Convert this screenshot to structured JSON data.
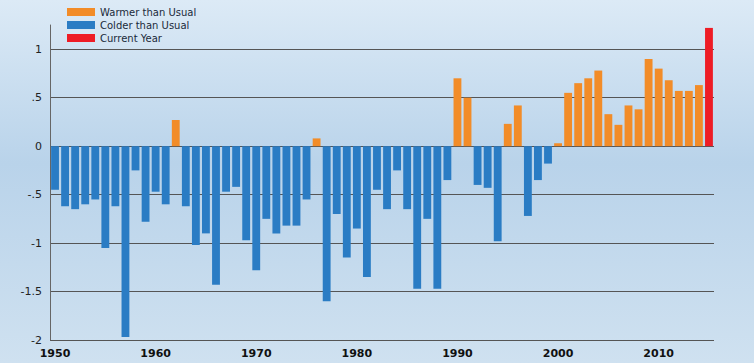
{
  "chart_data": {
    "type": "bar",
    "stacked": true,
    "grid": true,
    "legend": "top-left",
    "categories": [
      "1950",
      null,
      null,
      null,
      null,
      null,
      null,
      null,
      null,
      null,
      "1960",
      null,
      null,
      null,
      null,
      null,
      null,
      null,
      null,
      null,
      "1970",
      null,
      null,
      null,
      null,
      null,
      null,
      null,
      null,
      null,
      "1980",
      null,
      null,
      null,
      null,
      null,
      null,
      null,
      null,
      null,
      "1990",
      null,
      null,
      null,
      null,
      null,
      null,
      null,
      null,
      null,
      "2000",
      null,
      null,
      null,
      null,
      null,
      null,
      null,
      null,
      null,
      "2010",
      null,
      null,
      null,
      null,
      null
    ],
    "series": [
      {
        "name": "Warmer than Usual",
        "color": "#f28c28",
        "values": [
          null,
          null,
          null,
          null,
          null,
          null,
          null,
          null,
          null,
          null,
          null,
          null,
          0.27,
          null,
          null,
          null,
          null,
          null,
          null,
          null,
          null,
          null,
          null,
          null,
          null,
          null,
          0.08,
          null,
          null,
          null,
          null,
          null,
          null,
          null,
          null,
          null,
          null,
          null,
          null,
          null,
          0.7,
          0.5,
          null,
          null,
          null,
          0.23,
          0.42,
          null,
          null,
          null,
          0.03,
          0.55,
          0.65,
          0.7,
          0.78,
          0.33,
          0.22,
          0.42,
          0.38,
          0.9,
          0.8,
          0.68,
          0.57,
          0.57,
          0.63,
          null
        ]
      },
      {
        "name": "Colder than Usual",
        "color": "#2a7cc4",
        "values": [
          -0.45,
          -0.62,
          -0.65,
          -0.6,
          -0.55,
          -1.05,
          -0.62,
          -1.97,
          -0.25,
          -0.78,
          -0.47,
          -0.6,
          null,
          -0.62,
          -1.02,
          -0.9,
          -1.43,
          -0.47,
          -0.42,
          -0.97,
          -1.28,
          -0.75,
          -0.9,
          -0.82,
          -0.82,
          -0.55,
          null,
          -1.6,
          -0.7,
          -1.15,
          -0.85,
          -1.35,
          -0.45,
          -0.65,
          -0.25,
          -0.65,
          -1.47,
          -0.75,
          -1.47,
          -0.35,
          null,
          null,
          -0.4,
          -0.43,
          -0.98,
          null,
          null,
          -0.72,
          -0.35,
          -0.18,
          null,
          null,
          null,
          null,
          null,
          null,
          null,
          null,
          null,
          null,
          null,
          null,
          null,
          null,
          null,
          null
        ]
      },
      {
        "name": "Current Year",
        "color": "#ee1c25",
        "values": [
          null,
          null,
          null,
          null,
          null,
          null,
          null,
          null,
          null,
          null,
          null,
          null,
          null,
          null,
          null,
          null,
          null,
          null,
          null,
          null,
          null,
          null,
          null,
          null,
          null,
          null,
          null,
          null,
          null,
          null,
          null,
          null,
          null,
          null,
          null,
          null,
          null,
          null,
          null,
          null,
          null,
          null,
          null,
          null,
          null,
          null,
          null,
          null,
          null,
          null,
          null,
          null,
          null,
          null,
          null,
          null,
          null,
          null,
          null,
          null,
          null,
          null,
          null,
          null,
          null,
          1.22
        ]
      }
    ],
    "ylim": [
      -2,
      1.25
    ],
    "yticks": [
      -2,
      -1.5,
      -1,
      {
        "value": -0.5,
        "label": "-.5"
      },
      0,
      {
        "value": 0.5,
        "label": ".5"
      },
      1
    ]
  }
}
